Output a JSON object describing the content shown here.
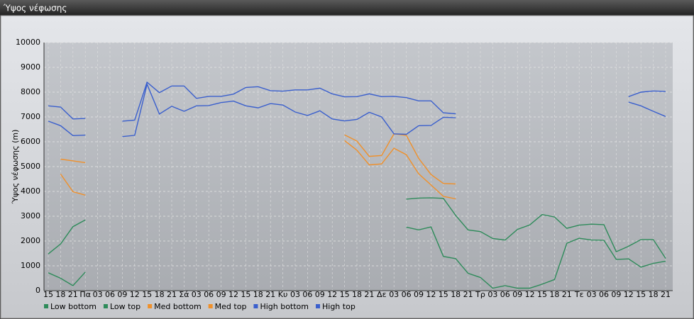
{
  "chart_data": {
    "type": "line",
    "title": "Ύψος νέφωσης",
    "ylabel": "Ύψος νέφωσης (m)",
    "categories": [
      "15",
      "18",
      "21",
      "Πα",
      "03",
      "06",
      "09",
      "12",
      "15",
      "18",
      "21",
      "Σά",
      "03",
      "06",
      "09",
      "12",
      "15",
      "18",
      "21",
      "Κυ",
      "03",
      "06",
      "09",
      "12",
      "15",
      "18",
      "21",
      "Δε",
      "03",
      "06",
      "09",
      "12",
      "15",
      "18",
      "21",
      "Τρ",
      "03",
      "06",
      "09",
      "12",
      "15",
      "18",
      "21",
      "Τε",
      "03",
      "06",
      "09",
      "12",
      "15",
      "18",
      "21"
    ],
    "series": [
      {
        "name": "Low bottom",
        "color": "#2e8b5a",
        "values": [
          720,
          500,
          200,
          750,
          null,
          null,
          null,
          null,
          null,
          null,
          null,
          null,
          null,
          null,
          null,
          null,
          null,
          null,
          null,
          null,
          null,
          null,
          null,
          null,
          null,
          null,
          null,
          null,
          null,
          2560,
          2450,
          2570,
          1380,
          1290,
          700,
          530,
          100,
          200,
          100,
          100,
          260,
          450,
          1910,
          2110,
          2040,
          2030,
          1260,
          1280,
          950,
          1100,
          1190
        ]
      },
      {
        "name": "Low top",
        "color": "#2e8b5a",
        "values": [
          1480,
          1880,
          2580,
          2850,
          null,
          null,
          null,
          null,
          null,
          null,
          null,
          null,
          null,
          null,
          null,
          null,
          null,
          null,
          null,
          null,
          null,
          null,
          null,
          null,
          null,
          null,
          null,
          null,
          null,
          3690,
          3730,
          3740,
          3720,
          3030,
          2450,
          2380,
          2100,
          2040,
          2470,
          2650,
          3070,
          2970,
          2510,
          2640,
          2680,
          2660,
          1570,
          1790,
          2060,
          2060,
          1300
        ]
      },
      {
        "name": "Med bottom",
        "color": "#f0902a",
        "values": [
          null,
          4700,
          3990,
          3850,
          null,
          null,
          null,
          null,
          null,
          null,
          null,
          null,
          null,
          null,
          null,
          null,
          null,
          null,
          null,
          null,
          null,
          null,
          null,
          null,
          6050,
          5660,
          5070,
          5110,
          5740,
          5480,
          4710,
          4260,
          3800,
          3700,
          null,
          null,
          null,
          null,
          null,
          null,
          null,
          null,
          null,
          null,
          null,
          null,
          null,
          null,
          null,
          null,
          null
        ]
      },
      {
        "name": "Med top",
        "color": "#f0902a",
        "values": [
          null,
          5300,
          5230,
          5160,
          null,
          null,
          null,
          null,
          null,
          null,
          null,
          null,
          null,
          null,
          null,
          null,
          null,
          null,
          null,
          null,
          null,
          null,
          null,
          null,
          6280,
          6030,
          5410,
          5450,
          6320,
          6260,
          5330,
          4680,
          4320,
          4300,
          null,
          null,
          null,
          null,
          null,
          null,
          null,
          null,
          null,
          null,
          null,
          null,
          null,
          null,
          null,
          null,
          null
        ]
      },
      {
        "name": "High bottom",
        "color": "#3a5fcd",
        "values": [
          6830,
          6650,
          6250,
          6270,
          null,
          null,
          6210,
          6260,
          8320,
          7120,
          7430,
          7230,
          7450,
          7460,
          7580,
          7640,
          7450,
          7370,
          7540,
          7480,
          7200,
          7060,
          7250,
          6920,
          6840,
          6900,
          7190,
          7000,
          6320,
          6300,
          6650,
          6660,
          6990,
          6970,
          null,
          null,
          null,
          null,
          null,
          null,
          null,
          null,
          null,
          null,
          null,
          null,
          null,
          7600,
          7450,
          7230,
          7020
        ]
      },
      {
        "name": "High top",
        "color": "#3a5fcd",
        "values": [
          7450,
          7400,
          6920,
          6940,
          null,
          null,
          6830,
          6870,
          8400,
          7980,
          8250,
          8250,
          7750,
          7830,
          7830,
          7920,
          8190,
          8220,
          8060,
          8040,
          8090,
          8090,
          8160,
          7930,
          7810,
          7820,
          7930,
          7820,
          7830,
          7780,
          7650,
          7650,
          7170,
          7130,
          null,
          null,
          null,
          null,
          null,
          null,
          null,
          null,
          null,
          null,
          null,
          null,
          null,
          7820,
          8000,
          8050,
          8030
        ]
      }
    ],
    "ylim": [
      0,
      10000
    ],
    "yticks": [
      0,
      1000,
      2000,
      3000,
      4000,
      5000,
      6000,
      7000,
      8000,
      9000,
      10000
    ],
    "grid": true,
    "legend": "bottom"
  }
}
